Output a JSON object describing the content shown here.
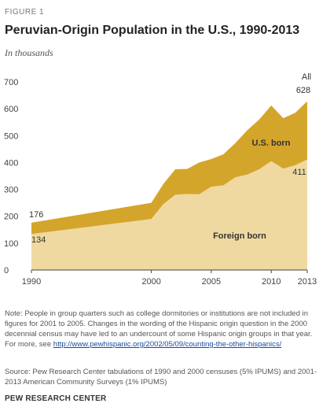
{
  "figure_label": "FIGURE 1",
  "title": "Peruvian-Origin Population in the U.S., 1990-2013",
  "subtitle": "In thousands",
  "note_text": "Note: People in group quarters such as college dormitories or institutions are not included in figures for 2001 to 2005. Changes in the wording of the Hispanic origin question in the 2000 decennial census may have led to an undercount of some Hispanic origin groups in that year. For more, see ",
  "note_link": "http://www.pewhispanic.org/2002/05/09/counting-the-other-hispanics/",
  "source_text": "Source: Pew Research Center tabulations of 1990 and 2000 censuses (5% IPUMS) and 2001-2013 American Community Surveys (1% IPUMS)",
  "org_name": "PEW RESEARCH CENTER",
  "chart_data": {
    "type": "area",
    "stacked": true,
    "x": [
      1990,
      2000,
      2001,
      2002,
      2003,
      2004,
      2005,
      2006,
      2007,
      2008,
      2009,
      2010,
      2011,
      2012,
      2013
    ],
    "series": [
      {
        "name": "Foreign born",
        "color": "#f0d9a0",
        "values": [
          134,
          190,
          245,
          280,
          283,
          282,
          310,
          315,
          345,
          355,
          375,
          405,
          377,
          390,
          411
        ]
      },
      {
        "name": "U.S. born",
        "color": "#d4a52b",
        "values": [
          42,
          60,
          75,
          95,
          93,
          118,
          103,
          115,
          127,
          165,
          185,
          207,
          188,
          195,
          217
        ]
      }
    ],
    "totals_label": "All",
    "data_labels": [
      {
        "year": 1990,
        "value": "176"
      },
      {
        "year": 1990,
        "value": "134"
      },
      {
        "year": 2013,
        "value": "628"
      },
      {
        "year": 2013,
        "value": "411"
      }
    ],
    "xticks": [
      1990,
      2000,
      2005,
      2010,
      2013
    ],
    "yticks": [
      0,
      100,
      200,
      300,
      400,
      500,
      600,
      700
    ],
    "ylim": [
      0,
      700
    ],
    "xlim": [
      1990,
      2013
    ]
  }
}
